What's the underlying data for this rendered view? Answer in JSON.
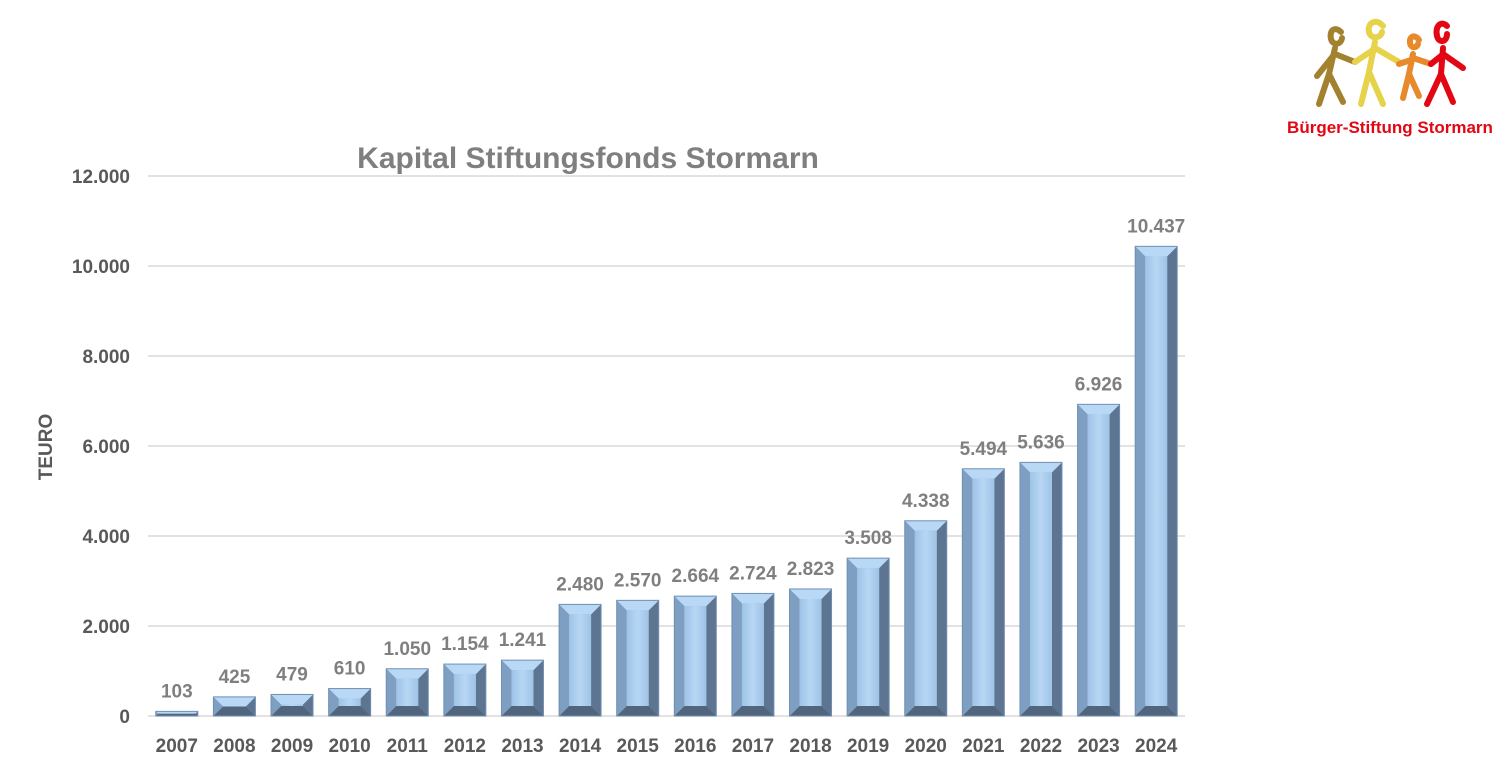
{
  "chart_data": {
    "type": "bar",
    "title": "Kapital Stiftungsfonds Stormarn",
    "ylabel": "TEURO",
    "xlabel": "",
    "ylim": [
      0,
      12000
    ],
    "yticks": [
      "0",
      "2.000",
      "4.000",
      "6.000",
      "8.000",
      "10.000",
      "12.000"
    ],
    "ytick_values": [
      0,
      2000,
      4000,
      6000,
      8000,
      10000,
      12000
    ],
    "grid": true,
    "categories": [
      "2007",
      "2008",
      "2009",
      "2010",
      "2011",
      "2012",
      "2013",
      "2014",
      "2015",
      "2016",
      "2017",
      "2018",
      "2019",
      "2020",
      "2021",
      "2022",
      "2023",
      "2024"
    ],
    "values": [
      103,
      425,
      479,
      610,
      1050,
      1154,
      1241,
      2480,
      2570,
      2664,
      2724,
      2823,
      3508,
      4338,
      5494,
      5636,
      6926,
      10437
    ],
    "value_labels": [
      "103",
      "425",
      "479",
      "610",
      "1.050",
      "1.154",
      "1.241",
      "2.480",
      "2.570",
      "2.664",
      "2.724",
      "2.823",
      "3.508",
      "4.338",
      "5.494",
      "5.636",
      "6.926",
      "10.437"
    ],
    "colors": {
      "bar_light": "#b9d8f5",
      "bar_mid": "#8eb0d3",
      "bar_dark": "#5d7591",
      "grid": "#d9d9d9"
    }
  },
  "logo": {
    "text": "Bürger-Stiftung Stormarn",
    "colors": [
      "#a2822f",
      "#e6d34a",
      "#e88a2c",
      "#e30613"
    ]
  }
}
